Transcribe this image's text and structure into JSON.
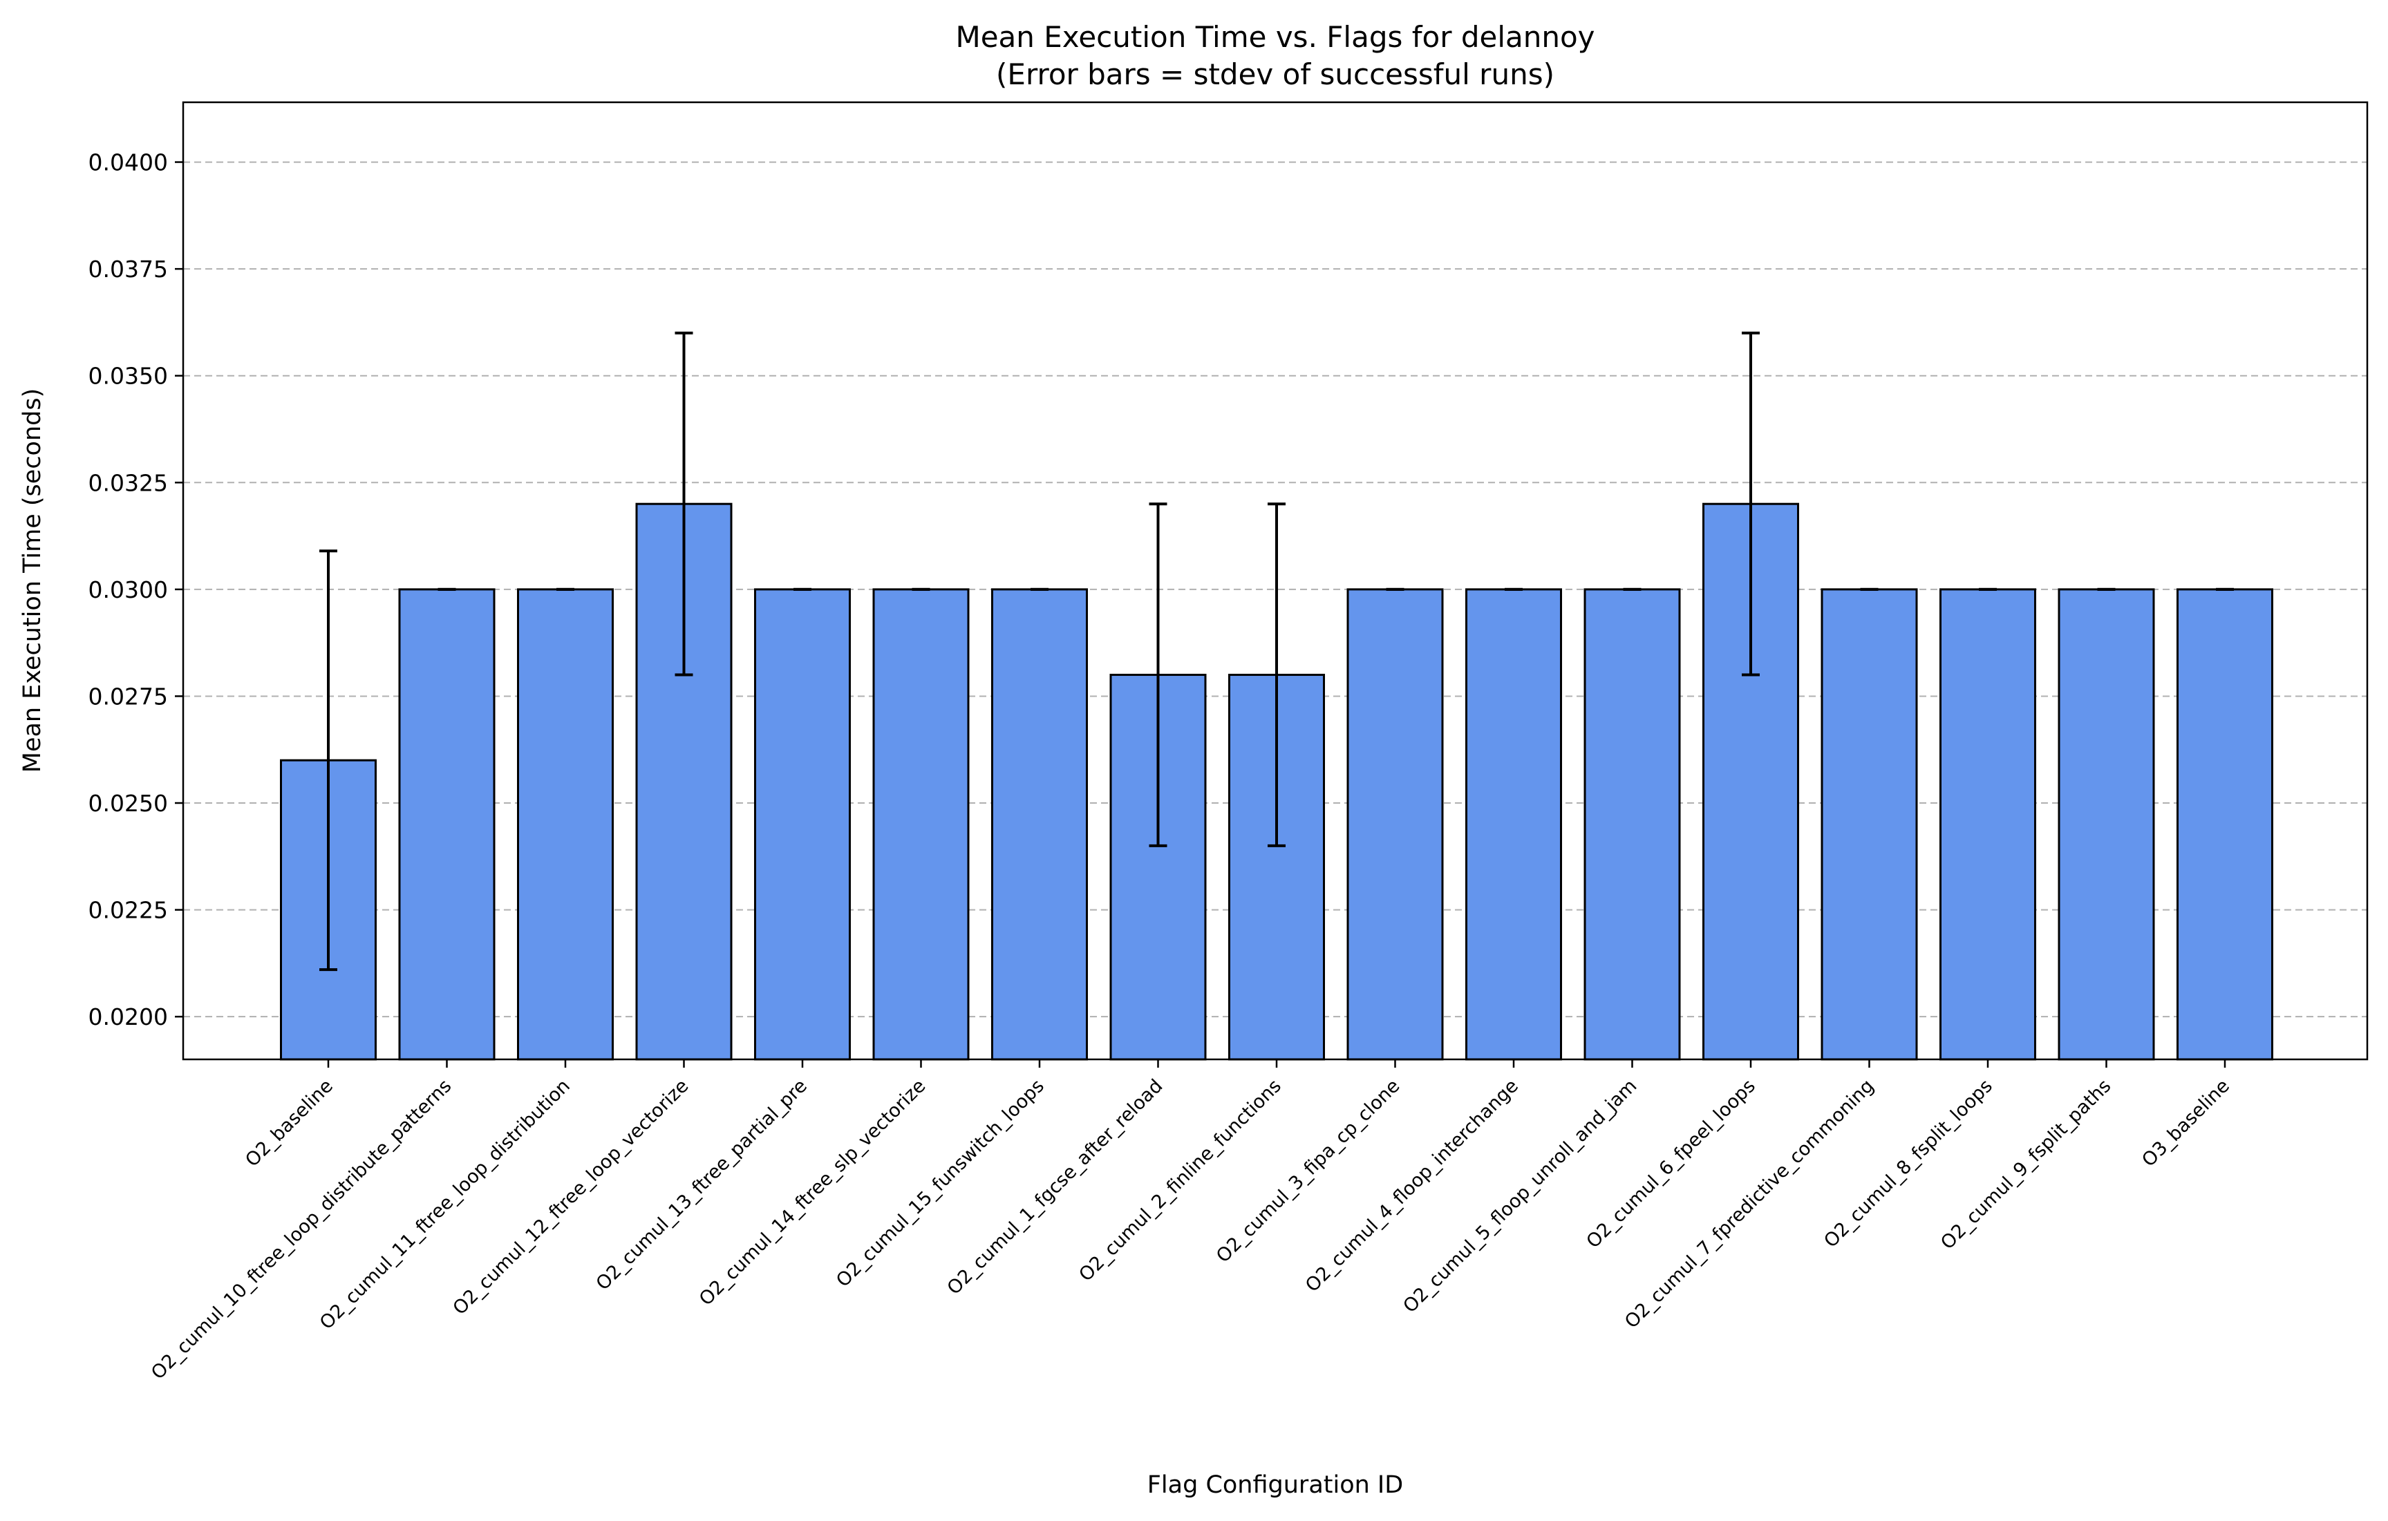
{
  "chart_data": {
    "type": "bar",
    "title": "Mean Execution Time vs. Flags for delannoy",
    "subtitle": "(Error bars = stdev of successful runs)",
    "xlabel": "Flag Configuration ID",
    "ylabel": "Mean Execution Time (seconds)",
    "ylim": [
      0.019,
      0.0414
    ],
    "yticks": [
      0.02,
      0.0225,
      0.025,
      0.0275,
      0.03,
      0.0325,
      0.035,
      0.0375,
      0.04
    ],
    "ytick_labels": [
      "0.0200",
      "0.0225",
      "0.0250",
      "0.0275",
      "0.0300",
      "0.0325",
      "0.0350",
      "0.0375",
      "0.0400"
    ],
    "grid": "y-dashed",
    "bar_color": "#6495ED",
    "edge_color": "#000000",
    "categories": [
      "O2_baseline",
      "O2_cumul_10_ftree_loop_distribute_patterns",
      "O2_cumul_11_ftree_loop_distribution",
      "O2_cumul_12_ftree_loop_vectorize",
      "O2_cumul_13_ftree_partial_pre",
      "O2_cumul_14_ftree_slp_vectorize",
      "O2_cumul_15_funswitch_loops",
      "O2_cumul_1_fgcse_after_reload",
      "O2_cumul_2_finline_functions",
      "O2_cumul_3_fipa_cp_clone",
      "O2_cumul_4_floop_interchange",
      "O2_cumul_5_floop_unroll_and_jam",
      "O2_cumul_6_fpeel_loops",
      "O2_cumul_7_fpredictive_commoning",
      "O2_cumul_8_fsplit_loops",
      "O2_cumul_9_fsplit_paths",
      "O3_baseline"
    ],
    "values": [
      0.026,
      0.03,
      0.03,
      0.032,
      0.03,
      0.03,
      0.03,
      0.028,
      0.028,
      0.03,
      0.03,
      0.03,
      0.032,
      0.03,
      0.03,
      0.03,
      0.03
    ],
    "errors": [
      0.0049,
      0,
      0,
      0.004,
      0,
      0,
      0,
      0.004,
      0.004,
      0,
      0,
      0,
      0.004,
      0,
      0,
      0,
      0
    ]
  }
}
